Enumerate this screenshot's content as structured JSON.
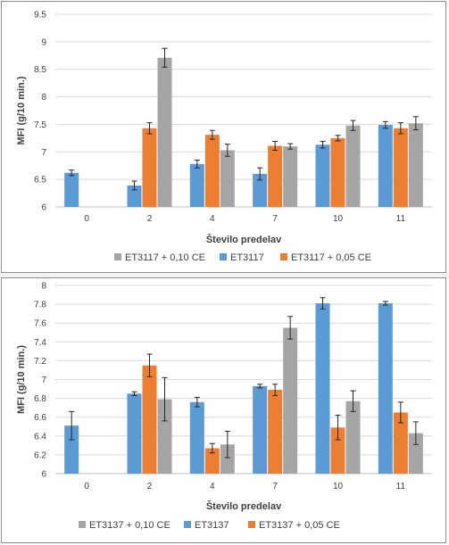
{
  "chart_data": [
    {
      "type": "bar",
      "xlabel": "Število predelav",
      "ylabel": "MFI (g/10 min.)",
      "ylim": [
        6,
        9.5
      ],
      "yticks": [
        6,
        6.5,
        7,
        7.5,
        8,
        8.5,
        9,
        9.5
      ],
      "ytick_labels": [
        "6",
        "6.5",
        "7",
        "7.5",
        "8",
        "8.5",
        "9",
        "9.5"
      ],
      "categories": [
        "0",
        "2",
        "4",
        "7",
        "10",
        "11"
      ],
      "grid": true,
      "legend_position": "bottom",
      "series": [
        {
          "name": "ET3117",
          "color": "#5b9bd5",
          "values": [
            6.62,
            6.39,
            6.78,
            6.6,
            7.13,
            7.49
          ],
          "errors": [
            0.05,
            0.08,
            0.07,
            0.11,
            0.06,
            0.06
          ]
        },
        {
          "name": "ET3117 + 0,05 CE",
          "color": "#ed7d31",
          "values": [
            null,
            7.43,
            7.31,
            7.11,
            7.25,
            7.43
          ],
          "errors": [
            null,
            0.1,
            0.08,
            0.08,
            0.05,
            0.1
          ]
        },
        {
          "name": "ET3117 + 0,10 CE",
          "color": "#a5a5a5",
          "values": [
            null,
            8.71,
            7.03,
            7.1,
            7.48,
            7.52
          ],
          "errors": [
            null,
            0.17,
            0.11,
            0.05,
            0.09,
            0.12
          ]
        }
      ],
      "legend_order": [
        "ET3117 + 0,10 CE",
        "ET3117",
        "ET3117 + 0,05 CE"
      ]
    },
    {
      "type": "bar",
      "xlabel": "Število predelav",
      "ylabel": "MFI (g/10 min.)",
      "ylim": [
        6,
        8
      ],
      "yticks": [
        6,
        6.2,
        6.4,
        6.6,
        6.8,
        7,
        7.2,
        7.4,
        7.6,
        7.8,
        8
      ],
      "ytick_labels": [
        "6",
        "6.2",
        "6.4",
        "6.6",
        "6.8",
        "7",
        "7.2",
        "7.4",
        "7.6",
        "7.8",
        "8"
      ],
      "categories": [
        "0",
        "2",
        "4",
        "7",
        "10",
        "11"
      ],
      "grid": true,
      "legend_position": "bottom",
      "series": [
        {
          "name": "ET3137",
          "color": "#5b9bd5",
          "values": [
            6.51,
            6.85,
            6.76,
            6.93,
            7.81,
            7.81
          ],
          "errors": [
            0.15,
            0.02,
            0.05,
            0.02,
            0.06,
            0.02
          ]
        },
        {
          "name": "ET3137 + 0,05 CE",
          "color": "#ed7d31",
          "values": [
            null,
            7.15,
            6.27,
            6.89,
            6.49,
            6.65
          ],
          "errors": [
            null,
            0.12,
            0.05,
            0.06,
            0.13,
            0.11
          ]
        },
        {
          "name": "ET3137 + 0,10 CE",
          "color": "#a5a5a5",
          "values": [
            null,
            6.79,
            6.31,
            7.55,
            6.77,
            6.43
          ],
          "errors": [
            null,
            0.23,
            0.14,
            0.12,
            0.11,
            0.12
          ]
        }
      ],
      "legend_order": [
        "ET3137 + 0,10 CE",
        "ET3137",
        "ET3137 + 0,05 CE"
      ]
    }
  ]
}
